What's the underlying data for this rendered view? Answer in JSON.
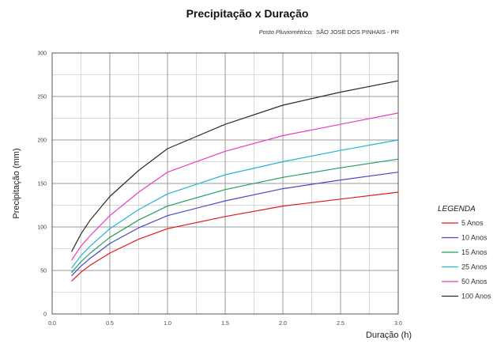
{
  "chart_data": {
    "type": "line",
    "title": "Precipitação x Duração",
    "subtitle": "Posto Pluviométrico:",
    "subtitle_value": "SÃO JOSÉ DOS PINHAIS - PR",
    "xlabel": "Duração (h)",
    "ylabel": "Precipitação (mm)",
    "xlim": [
      0,
      3
    ],
    "ylim": [
      0,
      300
    ],
    "x_ticks": [
      "0.0",
      "0.5",
      "1.0",
      "1.5",
      "2.0",
      "2.5",
      "3.0"
    ],
    "y_ticks": [
      "0",
      "50",
      "100",
      "150",
      "200",
      "250",
      "300"
    ],
    "grid": true,
    "legend": {
      "title": "LEGENDA",
      "position": "right"
    },
    "x": [
      0.17,
      0.25,
      0.33,
      0.5,
      0.75,
      1.0,
      1.5,
      2.0,
      2.5,
      3.0
    ],
    "series": [
      {
        "name": "5 Anos",
        "color": "#e31a1c",
        "values": [
          38,
          48,
          56,
          70,
          86,
          98,
          112,
          124,
          132,
          140
        ]
      },
      {
        "name": "10 Anos",
        "color": "#4a47c9",
        "values": [
          44,
          55,
          64,
          81,
          99,
          113,
          130,
          144,
          154,
          163
        ]
      },
      {
        "name": "15 Anos",
        "color": "#23a05a",
        "values": [
          48,
          60,
          70,
          88,
          108,
          124,
          143,
          157,
          168,
          178
        ]
      },
      {
        "name": "25 Anos",
        "color": "#22b4d8",
        "values": [
          53,
          67,
          78,
          98,
          120,
          138,
          160,
          175,
          188,
          200
        ]
      },
      {
        "name": "50 Anos",
        "color": "#e83cc4",
        "values": [
          62,
          78,
          90,
          113,
          140,
          163,
          187,
          205,
          218,
          231
        ]
      },
      {
        "name": "100 Anos",
        "color": "#2b2b2b",
        "values": [
          72,
          92,
          108,
          135,
          165,
          190,
          218,
          240,
          255,
          268
        ]
      }
    ]
  }
}
